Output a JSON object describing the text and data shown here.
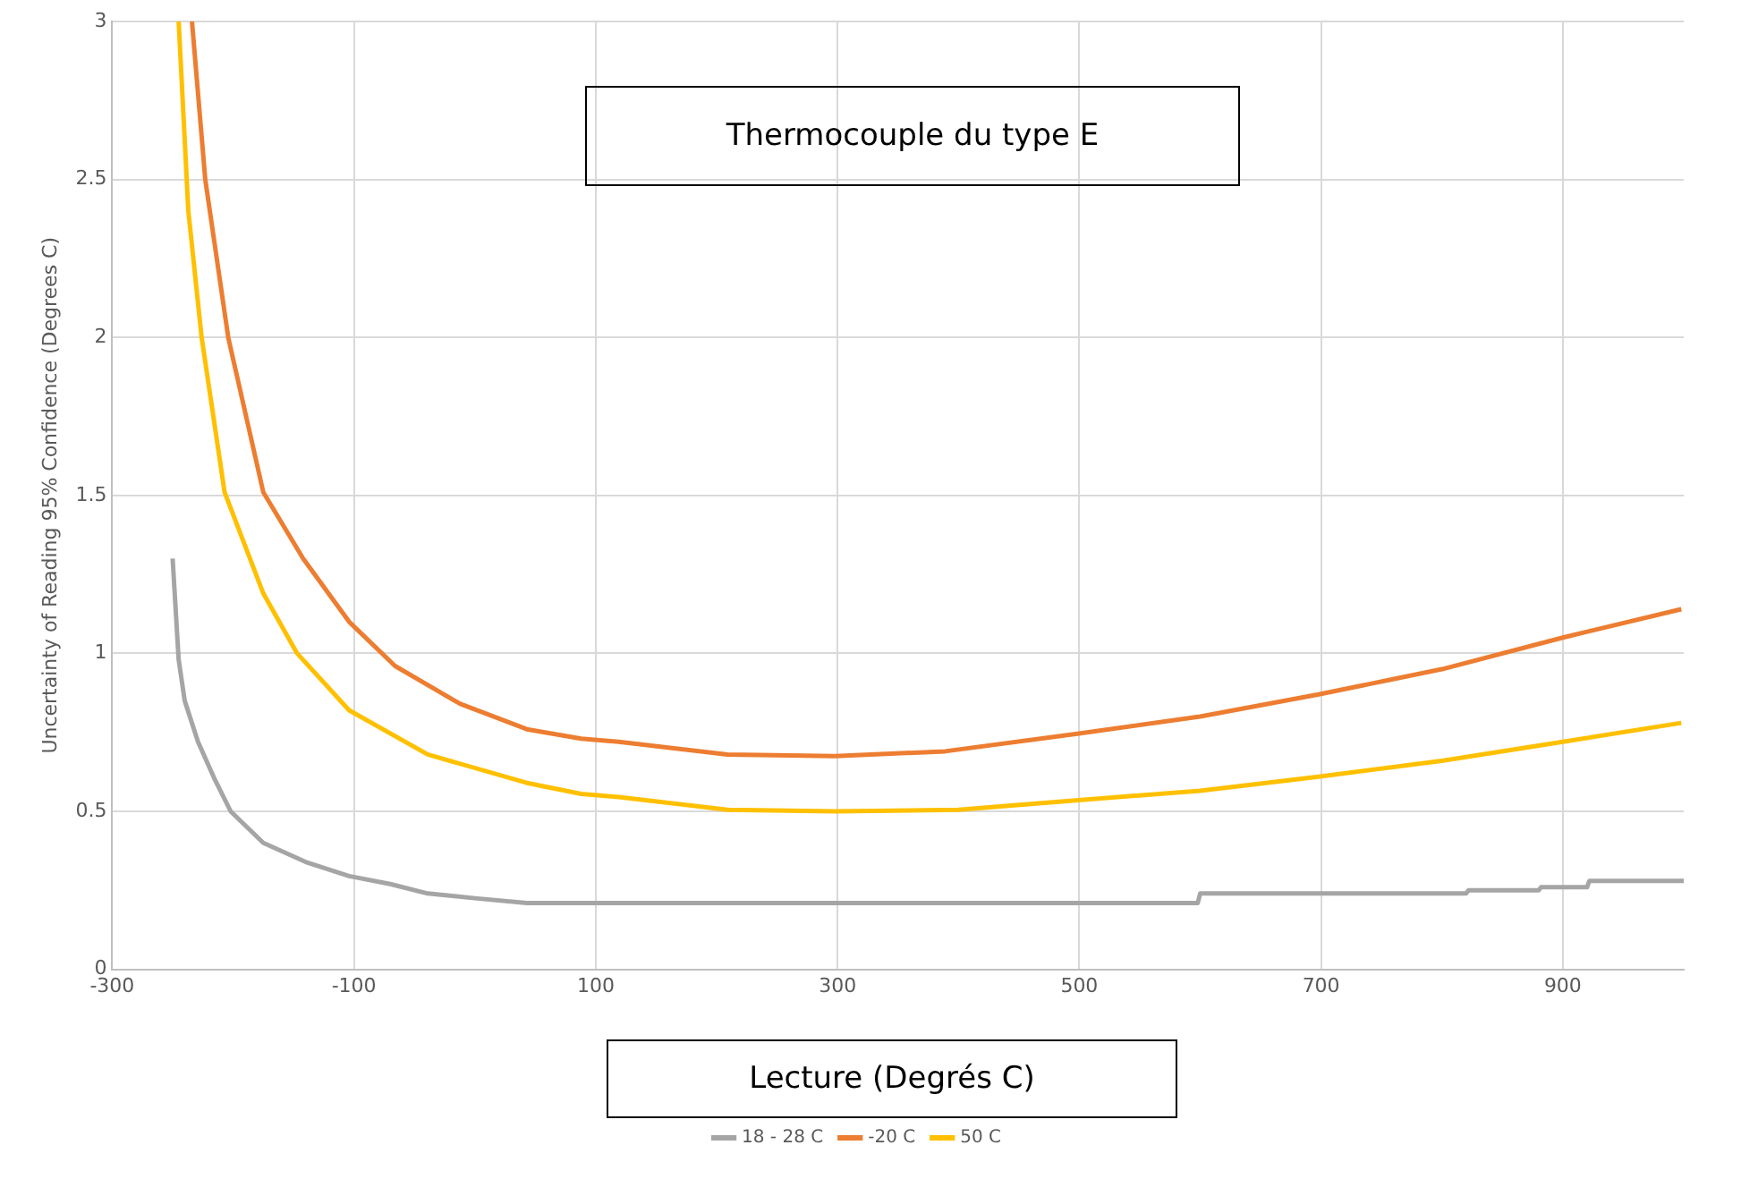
{
  "chart_data": {
    "type": "line",
    "title": "Thermocouple du type E",
    "xlabel": "Lecture (Degrés C)",
    "ylabel": "Uncertainty of Reading 95% Confidence (Degrees C)",
    "xlim": [
      -300,
      1000
    ],
    "xticks": [
      -300,
      -100,
      100,
      300,
      500,
      700,
      900
    ],
    "ylim": [
      0,
      3
    ],
    "yticks": [
      0,
      0.5,
      1,
      1.5,
      2,
      2.5,
      3
    ],
    "grid": true,
    "legend": "bottom",
    "marker": "none",
    "line_style": "solid",
    "series": [
      {
        "name": "18 - 28 C",
        "color": "#a5a5a5",
        "x": [
          -250,
          -245,
          -240,
          -229,
          -215,
          -202,
          -175,
          -140,
          -104,
          -70,
          -39,
          0,
          43,
          200,
          400,
          598,
          600,
          820,
          822,
          880,
          882,
          920,
          922,
          1000
        ],
        "values": [
          1.3,
          0.98,
          0.85,
          0.72,
          0.6,
          0.5,
          0.4,
          0.34,
          0.295,
          0.27,
          0.24,
          0.225,
          0.21,
          0.21,
          0.21,
          0.21,
          0.24,
          0.24,
          0.25,
          0.25,
          0.26,
          0.26,
          0.28,
          0.28
        ]
      },
      {
        "name": "-20 C",
        "color": "#ed7d31",
        "x": [
          -234,
          -223,
          -204,
          -175,
          -142,
          -104,
          -66,
          -12,
          43,
          88,
          119,
          209,
          298,
          389,
          497,
          600,
          698,
          800,
          900,
          998
        ],
        "values": [
          3,
          2.5,
          2,
          1.51,
          1.3,
          1.1,
          0.96,
          0.84,
          0.76,
          0.73,
          0.72,
          0.68,
          0.675,
          0.69,
          0.745,
          0.8,
          0.87,
          0.95,
          1.05,
          1.14
        ]
      },
      {
        "name": "50 C",
        "color": "#ffc000",
        "x": [
          -245,
          -237,
          -226,
          -207,
          -175,
          -147,
          -104,
          -39,
          43,
          88,
          119,
          209,
          298,
          400,
          497,
          600,
          698,
          800,
          900,
          998
        ],
        "values": [
          3,
          2.4,
          2,
          1.51,
          1.19,
          1,
          0.82,
          0.68,
          0.59,
          0.555,
          0.545,
          0.505,
          0.5,
          0.505,
          0.535,
          0.565,
          0.61,
          0.66,
          0.72,
          0.78
        ]
      }
    ]
  }
}
